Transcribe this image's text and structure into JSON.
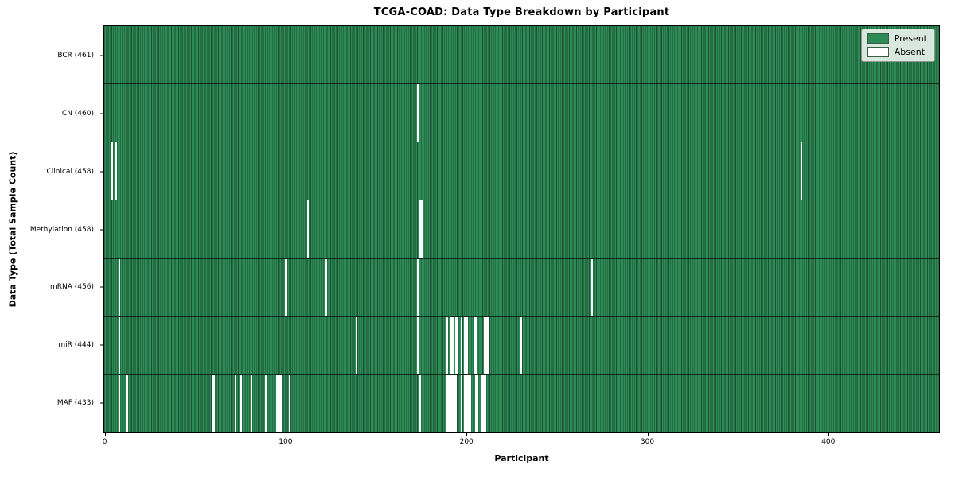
{
  "title": "TCGA-COAD: Data Type Breakdown by Participant",
  "legend": {
    "present_label": "Present",
    "absent_label": "Absent"
  },
  "colors": {
    "present": "#2e8b57",
    "absent": "#ffffff",
    "bar_edge_shade": "rgba(0,0,0,0.42)"
  },
  "chart_data": {
    "type": "heatmap",
    "title": "TCGA-COAD: Data Type Breakdown by Participant",
    "xlabel": "Participant",
    "ylabel": "Data Type (Total Sample Count)",
    "xlim": [
      0,
      461
    ],
    "n_participants": 461,
    "x_ticks": [
      0,
      100,
      200,
      300,
      400
    ],
    "grid": false,
    "legend_entries": [
      "Present",
      "Absent"
    ],
    "legend_position": "upper right",
    "cell_values": {
      "present": 1,
      "absent": 0
    },
    "rows": [
      {
        "label": "BCR (461)",
        "data_type": "BCR",
        "total": 461,
        "absent_participants": []
      },
      {
        "label": "CN (460)",
        "data_type": "CN",
        "total": 460,
        "absent_participants": [
          173
        ]
      },
      {
        "label": "Clinical (458)",
        "data_type": "Clinical",
        "total": 458,
        "absent_participants": [
          4,
          6,
          385
        ]
      },
      {
        "label": "Methylation (458)",
        "data_type": "Methylation",
        "total": 458,
        "absent_participants": [
          112,
          174,
          175
        ]
      },
      {
        "label": "mRNA (456)",
        "data_type": "mRNA",
        "total": 456,
        "absent_participants": [
          8,
          100,
          122,
          173,
          269
        ]
      },
      {
        "label": "miR (444)",
        "data_type": "miR",
        "total": 444,
        "absent_participants": [
          8,
          139,
          173,
          189,
          191,
          192,
          194,
          195,
          197,
          199,
          200,
          204,
          205,
          210,
          211,
          212,
          230
        ]
      },
      {
        "label": "MAF (433)",
        "data_type": "MAF",
        "total": 433,
        "absent_participants": [
          8,
          12,
          60,
          72,
          75,
          81,
          89,
          95,
          96,
          97,
          102,
          174,
          189,
          190,
          191,
          192,
          193,
          194,
          197,
          199,
          200,
          201,
          202,
          205,
          206,
          208,
          209,
          210
        ]
      }
    ]
  }
}
